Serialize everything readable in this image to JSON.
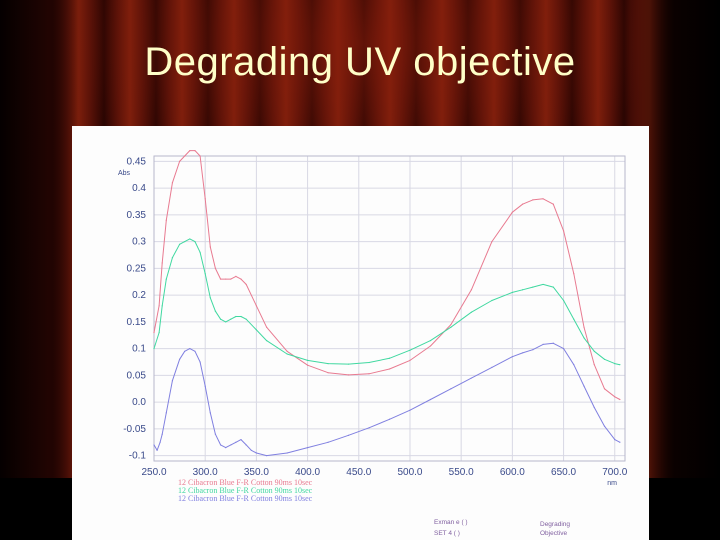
{
  "slide": {
    "title": "Degrading UV objective"
  },
  "colors": {
    "title_text": "#ffffc8",
    "curtain": "#7e1f0c",
    "grid": "#d8d8e4",
    "axis_text": "#3a4a8a"
  },
  "chart_data": {
    "type": "line",
    "title": "",
    "xlabel": "nm",
    "ylabel": "Abs",
    "xlim": [
      250,
      710
    ],
    "ylim": [
      -0.11,
      0.46
    ],
    "grid": true,
    "x_ticks": [
      "250.0",
      "300.0",
      "350.0",
      "400.0",
      "450.0",
      "500.0",
      "550.0",
      "600.0",
      "650.0",
      "700.0"
    ],
    "y_ticks": [
      "0.45",
      "0.4",
      "0.35",
      "0.3",
      "0.25",
      "0.2",
      "0.15",
      "0.1",
      "0.05",
      "0.0",
      "-0.05",
      "-0.1"
    ],
    "legend_position": "bottom-left",
    "series": [
      {
        "name": "12 Cibacron Blue F-R Cotton 90ms 10sec",
        "color": "#e87a90",
        "x": [
          250,
          255,
          258,
          262,
          268,
          275,
          280,
          285,
          290,
          295,
          300,
          305,
          310,
          315,
          320,
          325,
          330,
          335,
          340,
          350,
          360,
          380,
          400,
          420,
          440,
          460,
          480,
          500,
          520,
          540,
          560,
          580,
          600,
          610,
          620,
          630,
          640,
          650,
          660,
          670,
          680,
          690,
          700,
          705
        ],
        "y": [
          0.13,
          0.18,
          0.26,
          0.34,
          0.41,
          0.45,
          0.46,
          0.47,
          0.47,
          0.46,
          0.38,
          0.29,
          0.25,
          0.23,
          0.23,
          0.23,
          0.235,
          0.23,
          0.22,
          0.18,
          0.14,
          0.095,
          0.069,
          0.055,
          0.051,
          0.053,
          0.062,
          0.078,
          0.105,
          0.145,
          0.21,
          0.3,
          0.355,
          0.37,
          0.378,
          0.38,
          0.37,
          0.32,
          0.24,
          0.14,
          0.07,
          0.025,
          0.01,
          0.005
        ]
      },
      {
        "name": "12 Cibacron Blue F-R Cotton 90ms 10sec",
        "color": "#40d8a0",
        "x": [
          250,
          255,
          258,
          262,
          268,
          275,
          280,
          285,
          290,
          295,
          300,
          305,
          310,
          315,
          320,
          325,
          330,
          335,
          340,
          350,
          360,
          380,
          400,
          420,
          440,
          460,
          480,
          500,
          520,
          540,
          560,
          580,
          600,
          610,
          620,
          630,
          640,
          650,
          660,
          670,
          680,
          690,
          700,
          705
        ],
        "y": [
          0.1,
          0.13,
          0.18,
          0.23,
          0.27,
          0.295,
          0.3,
          0.305,
          0.3,
          0.28,
          0.24,
          0.195,
          0.17,
          0.155,
          0.15,
          0.155,
          0.16,
          0.16,
          0.155,
          0.135,
          0.115,
          0.09,
          0.078,
          0.072,
          0.071,
          0.074,
          0.082,
          0.097,
          0.115,
          0.14,
          0.168,
          0.19,
          0.205,
          0.21,
          0.215,
          0.22,
          0.215,
          0.19,
          0.155,
          0.12,
          0.095,
          0.08,
          0.072,
          0.07
        ]
      },
      {
        "name": "12 Cibacron Blue F-R Cotton 90ms 10sec",
        "color": "#8080e0",
        "x": [
          250,
          253,
          256,
          258,
          262,
          268,
          275,
          280,
          285,
          290,
          295,
          300,
          305,
          310,
          315,
          320,
          325,
          330,
          335,
          340,
          345,
          350,
          360,
          380,
          400,
          420,
          440,
          460,
          480,
          500,
          520,
          540,
          560,
          580,
          600,
          610,
          620,
          630,
          640,
          650,
          660,
          670,
          680,
          690,
          700,
          705
        ],
        "y": [
          -0.08,
          -0.09,
          -0.075,
          -0.06,
          -0.02,
          0.04,
          0.08,
          0.095,
          0.1,
          0.095,
          0.075,
          0.03,
          -0.02,
          -0.06,
          -0.08,
          -0.085,
          -0.08,
          -0.075,
          -0.07,
          -0.08,
          -0.09,
          -0.095,
          -0.1,
          -0.095,
          -0.085,
          -0.075,
          -0.062,
          -0.048,
          -0.032,
          -0.015,
          0.005,
          0.025,
          0.045,
          0.065,
          0.085,
          0.092,
          0.098,
          0.108,
          0.11,
          0.1,
          0.07,
          0.03,
          -0.01,
          -0.045,
          -0.07,
          -0.075
        ]
      }
    ],
    "stamp": {
      "line1": "Exman e ( )",
      "line2": "SET 4 ( )",
      "label1": "Degrading",
      "label2": "Objective"
    }
  }
}
